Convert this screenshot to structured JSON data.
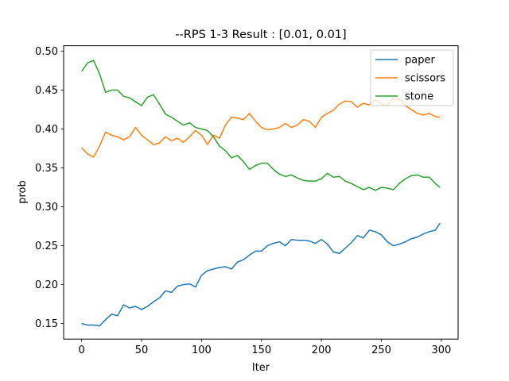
{
  "chart_data": {
    "type": "line",
    "title": "--RPS 1-3 Result : [0.01, 0.01]",
    "xlabel": "Iter",
    "ylabel": "prob",
    "xlim": [
      -15,
      314
    ],
    "ylim": [
      0.13,
      0.507
    ],
    "xticks": [
      0,
      50,
      100,
      150,
      200,
      250,
      300
    ],
    "yticks": [
      0.15,
      0.2,
      0.25,
      0.3,
      0.35,
      0.4,
      0.45,
      0.5
    ],
    "ytick_labels": [
      "0.15",
      "0.20",
      "0.25",
      "0.30",
      "0.35",
      "0.40",
      "0.45",
      "0.50"
    ],
    "grid": false,
    "legend_position": "top-right",
    "series": [
      {
        "name": "paper",
        "color": "#1f77b4",
        "x": [
          0,
          5,
          10,
          15,
          20,
          25,
          30,
          35,
          40,
          45,
          50,
          55,
          60,
          65,
          70,
          75,
          80,
          85,
          90,
          95,
          100,
          105,
          110,
          115,
          120,
          125,
          130,
          135,
          140,
          145,
          150,
          155,
          160,
          165,
          170,
          175,
          180,
          185,
          190,
          195,
          200,
          205,
          210,
          215,
          220,
          225,
          230,
          235,
          240,
          245,
          250,
          255,
          260,
          265,
          270,
          275,
          280,
          285,
          290,
          295,
          299
        ],
        "values": [
          0.15,
          0.148,
          0.148,
          0.147,
          0.155,
          0.162,
          0.16,
          0.174,
          0.17,
          0.172,
          0.168,
          0.172,
          0.178,
          0.183,
          0.192,
          0.19,
          0.198,
          0.2,
          0.201,
          0.197,
          0.212,
          0.218,
          0.22,
          0.222,
          0.223,
          0.22,
          0.229,
          0.232,
          0.238,
          0.243,
          0.243,
          0.25,
          0.253,
          0.255,
          0.25,
          0.258,
          0.257,
          0.257,
          0.256,
          0.253,
          0.258,
          0.252,
          0.242,
          0.24,
          0.247,
          0.254,
          0.263,
          0.26,
          0.27,
          0.268,
          0.264,
          0.255,
          0.25,
          0.252,
          0.255,
          0.259,
          0.261,
          0.265,
          0.268,
          0.27,
          0.279
        ]
      },
      {
        "name": "scissors",
        "color": "#ff7f0e",
        "x": [
          0,
          5,
          10,
          15,
          20,
          25,
          30,
          35,
          40,
          45,
          50,
          55,
          60,
          65,
          70,
          75,
          80,
          85,
          90,
          95,
          100,
          105,
          110,
          115,
          120,
          125,
          130,
          135,
          140,
          145,
          150,
          155,
          160,
          165,
          170,
          175,
          180,
          185,
          190,
          195,
          200,
          205,
          210,
          215,
          220,
          225,
          230,
          235,
          240,
          245,
          250,
          255,
          260,
          265,
          270,
          275,
          280,
          285,
          290,
          295,
          299
        ],
        "values": [
          0.376,
          0.368,
          0.364,
          0.378,
          0.396,
          0.392,
          0.39,
          0.386,
          0.39,
          0.402,
          0.392,
          0.386,
          0.38,
          0.382,
          0.39,
          0.385,
          0.388,
          0.383,
          0.39,
          0.398,
          0.392,
          0.38,
          0.392,
          0.388,
          0.405,
          0.415,
          0.414,
          0.412,
          0.42,
          0.41,
          0.402,
          0.399,
          0.4,
          0.402,
          0.407,
          0.402,
          0.405,
          0.412,
          0.41,
          0.402,
          0.415,
          0.42,
          0.424,
          0.432,
          0.436,
          0.435,
          0.428,
          0.433,
          0.431,
          0.438,
          0.432,
          0.43,
          0.44,
          0.438,
          0.43,
          0.425,
          0.42,
          0.418,
          0.42,
          0.416,
          0.415
        ]
      },
      {
        "name": "stone",
        "color": "#2ca02c",
        "x": [
          0,
          5,
          10,
          15,
          20,
          25,
          30,
          35,
          40,
          45,
          50,
          55,
          60,
          65,
          70,
          75,
          80,
          85,
          90,
          95,
          100,
          105,
          110,
          115,
          120,
          125,
          130,
          135,
          140,
          145,
          150,
          155,
          160,
          165,
          170,
          175,
          180,
          185,
          190,
          195,
          200,
          205,
          210,
          215,
          220,
          225,
          230,
          235,
          240,
          245,
          250,
          255,
          260,
          265,
          270,
          275,
          280,
          285,
          290,
          295,
          299
        ],
        "values": [
          0.474,
          0.485,
          0.488,
          0.471,
          0.447,
          0.45,
          0.45,
          0.442,
          0.44,
          0.435,
          0.43,
          0.441,
          0.444,
          0.432,
          0.419,
          0.415,
          0.41,
          0.405,
          0.408,
          0.402,
          0.4,
          0.398,
          0.39,
          0.378,
          0.372,
          0.363,
          0.366,
          0.358,
          0.348,
          0.353,
          0.356,
          0.356,
          0.348,
          0.342,
          0.339,
          0.341,
          0.337,
          0.334,
          0.333,
          0.333,
          0.336,
          0.343,
          0.338,
          0.339,
          0.333,
          0.33,
          0.326,
          0.322,
          0.325,
          0.321,
          0.325,
          0.324,
          0.322,
          0.33,
          0.336,
          0.34,
          0.341,
          0.338,
          0.338,
          0.33,
          0.325
        ]
      }
    ]
  }
}
